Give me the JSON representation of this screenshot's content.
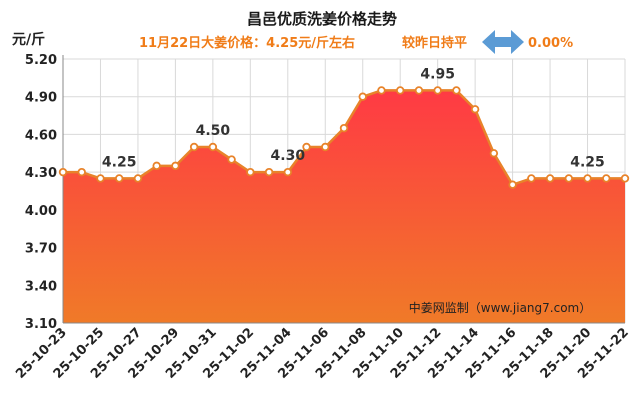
{
  "chart_data": {
    "type": "area",
    "title": "昌邑优质洗姜价格走势",
    "subtitle": {
      "price_text": "11月22日大姜价格：4.25元/斤左右",
      "compare_text": "较昨日持平",
      "change_text": "0.00%"
    },
    "ylabel": "元/斤",
    "xlabel": "",
    "ylim": [
      3.1,
      5.2
    ],
    "y_ticks": [
      "5.20",
      "4.90",
      "4.60",
      "4.30",
      "4.00",
      "3.70",
      "3.40",
      "3.10"
    ],
    "grid": true,
    "x_tick_labels": [
      "25-10-23",
      "25-10-25",
      "25-10-27",
      "25-10-29",
      "25-10-31",
      "25-11-02",
      "25-11-04",
      "25-11-06",
      "25-11-08",
      "25-11-10",
      "25-11-12",
      "25-11-14",
      "25-11-16",
      "25-11-18",
      "25-11-20",
      "25-11-22"
    ],
    "x": [
      "25-10-23",
      "25-10-24",
      "25-10-25",
      "25-10-26",
      "25-10-27",
      "25-10-28",
      "25-10-29",
      "25-10-30",
      "25-10-31",
      "25-11-01",
      "25-11-02",
      "25-11-03",
      "25-11-04",
      "25-11-05",
      "25-11-06",
      "25-11-07",
      "25-11-08",
      "25-11-09",
      "25-11-10",
      "25-11-11",
      "25-11-12",
      "25-11-13",
      "25-11-14",
      "25-11-15",
      "25-11-16",
      "25-11-17",
      "25-11-18",
      "25-11-19",
      "25-11-20",
      "25-11-21",
      "25-11-22"
    ],
    "values": [
      4.3,
      4.3,
      4.25,
      4.25,
      4.25,
      4.35,
      4.35,
      4.5,
      4.5,
      4.4,
      4.3,
      4.3,
      4.3,
      4.5,
      4.5,
      4.65,
      4.9,
      4.95,
      4.95,
      4.95,
      4.95,
      4.95,
      4.8,
      4.45,
      4.2,
      4.25,
      4.25,
      4.25,
      4.25,
      4.25,
      4.25
    ],
    "annotations": [
      {
        "index": 3,
        "text": "4.25"
      },
      {
        "index": 8,
        "text": "4.50"
      },
      {
        "index": 12,
        "text": "4.30"
      },
      {
        "index": 20,
        "text": "4.95"
      },
      {
        "index": 28,
        "text": "4.25"
      }
    ],
    "watermark": "中姜网监制（www.jiang7.com）",
    "colors": {
      "title": "#1a1a1a",
      "subtitle": "#f07c18",
      "change": "#f07c18",
      "arrow": "#5b9bd5",
      "line": "#e8832a",
      "marker_fill": "#ffffff",
      "area_top": "#ff3a44",
      "area_bottom": "#f07a28",
      "grid": "#d9d9d9",
      "axis_text": "#222222"
    }
  }
}
